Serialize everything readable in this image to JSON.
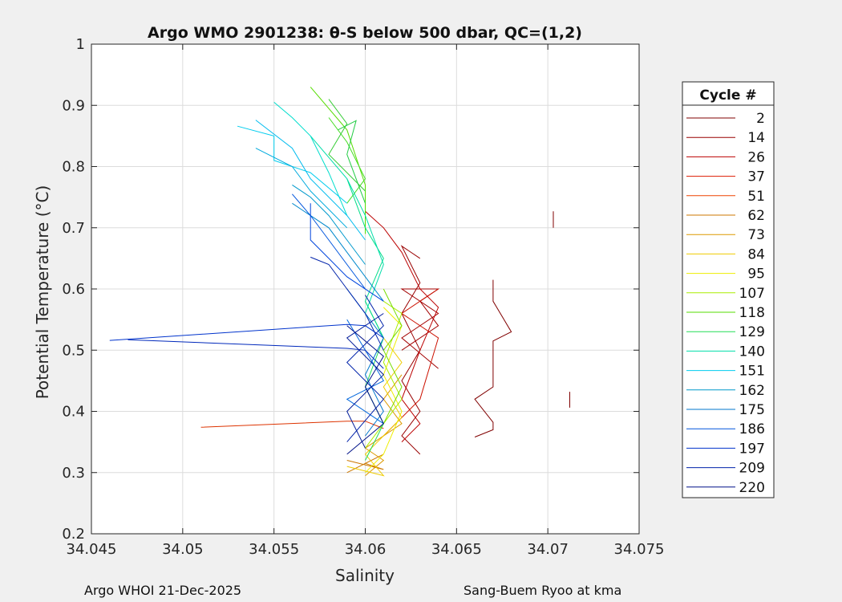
{
  "footer": {
    "left": "Argo WHOI 21-Dec-2025",
    "right": "Sang-Buem Ryoo at kma"
  },
  "chart_data": {
    "type": "line",
    "title": "Argo WMO 2901238: θ-S below 500 dbar,  QC=(1,2)",
    "xlabel": "Salinity",
    "ylabel": "Potential Temperature (°C)",
    "xlim": [
      34.045,
      34.075
    ],
    "ylim": [
      0.2,
      1.0
    ],
    "xticks": [
      "34.045",
      "34.05",
      "34.055",
      "34.06",
      "34.065",
      "34.07",
      "34.075"
    ],
    "yticks": [
      "0.2",
      "0.3",
      "0.4",
      "0.5",
      "0.6",
      "0.7",
      "0.8",
      "0.9",
      "1"
    ],
    "grid": true,
    "legend": {
      "title": "Cycle #",
      "placement": "right, outside",
      "entries": [
        {
          "label": "2",
          "color": "#800000"
        },
        {
          "label": "14",
          "color": "#990000"
        },
        {
          "label": "26",
          "color": "#bb0000"
        },
        {
          "label": "37",
          "color": "#dd1a00"
        },
        {
          "label": "51",
          "color": "#ee4400"
        },
        {
          "label": "62",
          "color": "#cc7700"
        },
        {
          "label": "73",
          "color": "#dd9900"
        },
        {
          "label": "84",
          "color": "#eecc00"
        },
        {
          "label": "95",
          "color": "#eeee00"
        },
        {
          "label": "107",
          "color": "#aaee00"
        },
        {
          "label": "118",
          "color": "#55dd00"
        },
        {
          "label": "129",
          "color": "#22dd55"
        },
        {
          "label": "140",
          "color": "#00ddaa"
        },
        {
          "label": "151",
          "color": "#00ccee"
        },
        {
          "label": "162",
          "color": "#0099cc"
        },
        {
          "label": "175",
          "color": "#0077cc"
        },
        {
          "label": "186",
          "color": "#0055dd"
        },
        {
          "label": "197",
          "color": "#0033cc"
        },
        {
          "label": "209",
          "color": "#0022aa"
        },
        {
          "label": "220",
          "color": "#001188"
        }
      ]
    },
    "series": [
      {
        "cycle": 2,
        "color": "#800000",
        "points": [
          [
            34.066,
            0.358
          ],
          [
            34.067,
            0.37
          ],
          [
            34.067,
            0.382
          ],
          [
            34.066,
            0.42
          ],
          [
            34.067,
            0.44
          ],
          [
            34.067,
            0.515
          ],
          [
            34.068,
            0.53
          ],
          [
            34.067,
            0.58
          ],
          [
            34.067,
            0.615
          ]
        ]
      },
      {
        "cycle": 2,
        "color": "#800000",
        "points": [
          [
            34.0703,
            0.7
          ],
          [
            34.0703,
            0.727
          ]
        ]
      },
      {
        "cycle": 2,
        "color": "#800000",
        "points": [
          [
            34.0712,
            0.406
          ],
          [
            34.0712,
            0.432
          ]
        ]
      },
      {
        "cycle": 14,
        "color": "#990000",
        "points": [
          [
            34.063,
            0.33
          ],
          [
            34.062,
            0.36
          ],
          [
            34.063,
            0.4
          ],
          [
            34.062,
            0.45
          ],
          [
            34.063,
            0.5
          ],
          [
            34.062,
            0.56
          ],
          [
            34.063,
            0.61
          ],
          [
            34.062,
            0.67
          ],
          [
            34.063,
            0.65
          ]
        ]
      },
      {
        "cycle": 26,
        "color": "#a30000",
        "points": [
          [
            34.064,
            0.47
          ],
          [
            34.062,
            0.52
          ],
          [
            34.064,
            0.56
          ],
          [
            34.062,
            0.6
          ],
          [
            34.064,
            0.6
          ],
          [
            34.063,
            0.58
          ],
          [
            34.064,
            0.54
          ],
          [
            34.062,
            0.5
          ]
        ]
      },
      {
        "cycle": 37,
        "color": "#bb0000",
        "points": [
          [
            34.06,
            0.727
          ],
          [
            34.061,
            0.7
          ],
          [
            34.062,
            0.66
          ],
          [
            34.063,
            0.6
          ],
          [
            34.064,
            0.57
          ],
          [
            34.063,
            0.5
          ],
          [
            34.062,
            0.42
          ],
          [
            34.063,
            0.38
          ],
          [
            34.062,
            0.35
          ]
        ]
      },
      {
        "cycle": 45,
        "color": "#cc1100",
        "points": [
          [
            34.061,
            0.36
          ],
          [
            34.063,
            0.42
          ],
          [
            34.064,
            0.52
          ],
          [
            34.062,
            0.56
          ],
          [
            34.064,
            0.6
          ]
        ]
      },
      {
        "cycle": 51,
        "color": "#dd3300",
        "points": [
          [
            34.051,
            0.374
          ],
          [
            34.059,
            0.384
          ],
          [
            34.06,
            0.384
          ],
          [
            34.061,
            0.372
          ]
        ]
      },
      {
        "cycle": 62,
        "color": "#cc7700",
        "points": [
          [
            34.059,
            0.3
          ],
          [
            34.061,
            0.33
          ],
          [
            34.06,
            0.315
          ],
          [
            34.061,
            0.305
          ],
          [
            34.059,
            0.32
          ]
        ]
      },
      {
        "cycle": 73,
        "color": "#dd9900",
        "points": [
          [
            34.06,
            0.295
          ],
          [
            34.061,
            0.32
          ],
          [
            34.06,
            0.34
          ],
          [
            34.062,
            0.38
          ],
          [
            34.061,
            0.42
          ],
          [
            34.062,
            0.46
          ]
        ]
      },
      {
        "cycle": 84,
        "color": "#eecc00",
        "points": [
          [
            34.059,
            0.31
          ],
          [
            34.061,
            0.295
          ],
          [
            34.06,
            0.33
          ],
          [
            34.062,
            0.39
          ],
          [
            34.061,
            0.44
          ],
          [
            34.062,
            0.48
          ],
          [
            34.061,
            0.52
          ]
        ]
      },
      {
        "cycle": 95,
        "color": "#eeee00",
        "points": [
          [
            34.06,
            0.3
          ],
          [
            34.061,
            0.33
          ],
          [
            34.062,
            0.4
          ],
          [
            34.061,
            0.46
          ],
          [
            34.062,
            0.54
          ],
          [
            34.061,
            0.57
          ]
        ]
      },
      {
        "cycle": 107,
        "color": "#aaee00",
        "points": [
          [
            34.06,
            0.34
          ],
          [
            34.062,
            0.42
          ],
          [
            34.061,
            0.48
          ],
          [
            34.062,
            0.56
          ],
          [
            34.061,
            0.58
          ]
        ]
      },
      {
        "cycle": 112,
        "color": "#77dd00",
        "points": [
          [
            34.061,
            0.38
          ],
          [
            34.062,
            0.44
          ],
          [
            34.061,
            0.5
          ],
          [
            34.062,
            0.54
          ],
          [
            34.061,
            0.6
          ]
        ]
      },
      {
        "cycle": 118,
        "color": "#55dd00",
        "points": [
          [
            34.057,
            0.93
          ],
          [
            34.059,
            0.86
          ],
          [
            34.06,
            0.77
          ],
          [
            34.06,
            0.69
          ]
        ]
      },
      {
        "cycle": 122,
        "color": "#44dd22",
        "points": [
          [
            34.058,
            0.88
          ],
          [
            34.059,
            0.84
          ],
          [
            34.06,
            0.78
          ],
          [
            34.059,
            0.74
          ]
        ]
      },
      {
        "cycle": 125,
        "color": "#33cc33",
        "points": [
          [
            34.058,
            0.91
          ],
          [
            34.059,
            0.87
          ],
          [
            34.058,
            0.82
          ],
          [
            34.06,
            0.76
          ]
        ]
      },
      {
        "cycle": 127,
        "color": "#22cc44",
        "points": [
          [
            34.0585,
            0.86
          ],
          [
            34.0595,
            0.875
          ],
          [
            34.059,
            0.82
          ],
          [
            34.06,
            0.74
          ]
        ]
      },
      {
        "cycle": 129,
        "color": "#22dd55",
        "points": [
          [
            34.06,
            0.32
          ],
          [
            34.061,
            0.38
          ],
          [
            34.06,
            0.44
          ],
          [
            34.061,
            0.52
          ],
          [
            34.06,
            0.58
          ]
        ]
      },
      {
        "cycle": 135,
        "color": "#00dd88",
        "points": [
          [
            34.059,
            0.78
          ],
          [
            34.06,
            0.7
          ],
          [
            34.061,
            0.65
          ],
          [
            34.06,
            0.58
          ],
          [
            34.061,
            0.52
          ]
        ]
      },
      {
        "cycle": 140,
        "color": "#00ddaa",
        "points": [
          [
            34.057,
            0.85
          ],
          [
            34.059,
            0.78
          ],
          [
            34.06,
            0.72
          ],
          [
            34.061,
            0.64
          ],
          [
            34.06,
            0.56
          ]
        ]
      },
      {
        "cycle": 145,
        "color": "#00ddcc",
        "points": [
          [
            34.055,
            0.905
          ],
          [
            34.056,
            0.88
          ],
          [
            34.057,
            0.85
          ],
          [
            34.058,
            0.79
          ],
          [
            34.059,
            0.72
          ]
        ]
      },
      {
        "cycle": 151,
        "color": "#00ccee",
        "points": [
          [
            34.053,
            0.866
          ],
          [
            34.055,
            0.85
          ],
          [
            34.055,
            0.81
          ],
          [
            34.057,
            0.79
          ],
          [
            34.059,
            0.74
          ]
        ]
      },
      {
        "cycle": 155,
        "color": "#00bbee",
        "points": [
          [
            34.054,
            0.876
          ],
          [
            34.056,
            0.83
          ],
          [
            34.057,
            0.78
          ],
          [
            34.059,
            0.72
          ],
          [
            34.06,
            0.68
          ]
        ]
      },
      {
        "cycle": 158,
        "color": "#00aadd",
        "points": [
          [
            34.054,
            0.83
          ],
          [
            34.056,
            0.8
          ],
          [
            34.057,
            0.76
          ],
          [
            34.058,
            0.73
          ],
          [
            34.059,
            0.7
          ]
        ]
      },
      {
        "cycle": 162,
        "color": "#0099cc",
        "points": [
          [
            34.056,
            0.77
          ],
          [
            34.057,
            0.75
          ],
          [
            34.058,
            0.72
          ],
          [
            34.059,
            0.68
          ],
          [
            34.06,
            0.64
          ]
        ]
      },
      {
        "cycle": 168,
        "color": "#0088cc",
        "points": [
          [
            34.056,
            0.74
          ],
          [
            34.058,
            0.7
          ],
          [
            34.059,
            0.66
          ],
          [
            34.06,
            0.62
          ],
          [
            34.061,
            0.58
          ]
        ]
      },
      {
        "cycle": 175,
        "color": "#0077cc",
        "points": [
          [
            34.059,
            0.6
          ],
          [
            34.061,
            0.52
          ],
          [
            34.06,
            0.46
          ],
          [
            34.061,
            0.4
          ],
          [
            34.06,
            0.36
          ]
        ]
      },
      {
        "cycle": 180,
        "color": "#0066dd",
        "points": [
          [
            34.059,
            0.55
          ],
          [
            34.06,
            0.5
          ],
          [
            34.061,
            0.45
          ],
          [
            34.059,
            0.42
          ],
          [
            34.061,
            0.38
          ]
        ]
      },
      {
        "cycle": 186,
        "color": "#0055dd",
        "points": [
          [
            34.056,
            0.755
          ],
          [
            34.057,
            0.72
          ],
          [
            34.058,
            0.68
          ],
          [
            34.059,
            0.64
          ],
          [
            34.06,
            0.6
          ]
        ]
      },
      {
        "cycle": 190,
        "color": "#0044dd",
        "points": [
          [
            34.057,
            0.74
          ],
          [
            34.057,
            0.68
          ],
          [
            34.058,
            0.65
          ],
          [
            34.059,
            0.62
          ],
          [
            34.061,
            0.58
          ]
        ]
      },
      {
        "cycle": 197,
        "color": "#0033cc",
        "points": [
          [
            34.046,
            0.516
          ],
          [
            34.059,
            0.542
          ],
          [
            34.06,
            0.54
          ],
          [
            34.061,
            0.52
          ]
        ]
      },
      {
        "cycle": 201,
        "color": "#0028bb",
        "points": [
          [
            34.047,
            0.517
          ],
          [
            34.059,
            0.503
          ],
          [
            34.06,
            0.5
          ],
          [
            34.061,
            0.47
          ]
        ]
      },
      {
        "cycle": 205,
        "color": "#0022aa",
        "points": [
          [
            34.057,
            0.652
          ],
          [
            34.058,
            0.64
          ],
          [
            34.059,
            0.6
          ],
          [
            34.06,
            0.56
          ],
          [
            34.061,
            0.5
          ]
        ]
      },
      {
        "cycle": 209,
        "color": "#0022aa",
        "points": [
          [
            34.059,
            0.35
          ],
          [
            34.061,
            0.42
          ],
          [
            34.059,
            0.48
          ],
          [
            34.061,
            0.54
          ],
          [
            34.06,
            0.59
          ]
        ]
      },
      {
        "cycle": 214,
        "color": "#001a99",
        "points": [
          [
            34.06,
            0.34
          ],
          [
            34.059,
            0.4
          ],
          [
            34.061,
            0.46
          ],
          [
            34.059,
            0.52
          ],
          [
            34.061,
            0.56
          ]
        ]
      },
      {
        "cycle": 220,
        "color": "#001188",
        "points": [
          [
            34.059,
            0.33
          ],
          [
            34.061,
            0.38
          ],
          [
            34.06,
            0.44
          ],
          [
            34.061,
            0.49
          ],
          [
            34.059,
            0.54
          ]
        ]
      }
    ]
  }
}
